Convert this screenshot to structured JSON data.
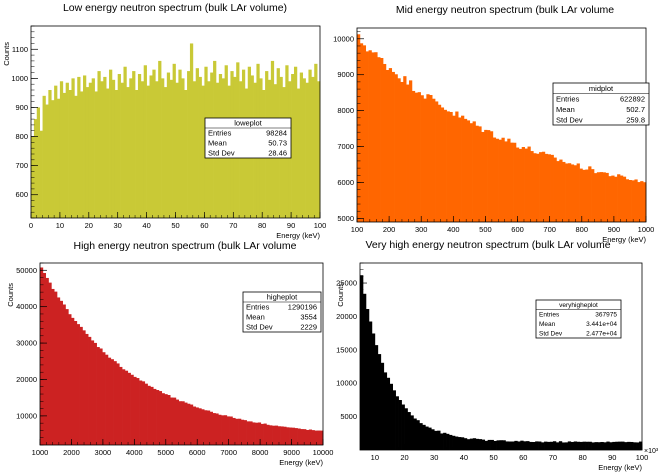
{
  "chart_data": [
    {
      "type": "bar",
      "title": "Low energy neutron spectrum (bulk LAr volume)",
      "xlabel": "Energy (keV)",
      "ylabel": "Counts",
      "xlim": [
        0,
        100
      ],
      "ylim": [
        520,
        1180
      ],
      "xticks": [
        0,
        10,
        20,
        30,
        40,
        50,
        60,
        70,
        80,
        90,
        100
      ],
      "yticks": [
        600,
        700,
        800,
        900,
        1000,
        1100
      ],
      "bin_count": 100,
      "values": [
        800,
        860,
        900,
        820,
        940,
        910,
        960,
        925,
        975,
        930,
        990,
        950,
        985,
        960,
        1000,
        940,
        1005,
        955,
        1010,
        970,
        985,
        1000,
        955,
        1025,
        990,
        1005,
        965,
        1030,
        995,
        960,
        1015,
        985,
        1040,
        970,
        1000,
        1025,
        960,
        1015,
        990,
        1045,
        975,
        1010,
        1030,
        990,
        1060,
        1000,
        970,
        1020,
        995,
        1050,
        985,
        1030,
        1000,
        960,
        1025,
        1120,
        990,
        1035,
        1005,
        975,
        1040,
        990,
        1020,
        1060,
        985,
        1015,
        1000,
        1045,
        975,
        1025,
        1005,
        1055,
        990,
        1030,
        965,
        1040,
        1010,
        985,
        1050,
        1000,
        960,
        1025,
        995,
        1060,
        980,
        1035,
        1005,
        970,
        1045,
        990,
        1015,
        1040,
        965,
        1020,
        1000,
        985,
        1030,
        1005,
        1050,
        990
      ],
      "color": "#c9c936",
      "stats": {
        "name": "loweplot",
        "rows": [
          {
            "label": "Entries",
            "value": "98284"
          },
          {
            "label": "Mean",
            "value": "50.73"
          },
          {
            "label": "Std Dev",
            "value": "28.46"
          }
        ]
      }
    },
    {
      "type": "bar",
      "title": "Mid energy neutron spectrum (bulk LAr volume",
      "xlabel": "Energy (keV)",
      "ylabel": "",
      "xlim": [
        100,
        1000
      ],
      "ylim": [
        4900,
        10300
      ],
      "xticks": [
        100,
        200,
        300,
        400,
        500,
        600,
        700,
        800,
        900,
        1000
      ],
      "yticks": [
        5000,
        6000,
        7000,
        8000,
        9000,
        10000
      ],
      "decay": {
        "start": 10000,
        "end": 5000,
        "shape": 1.6,
        "noise": 150
      },
      "bin_count": 100,
      "color": "#ff6600",
      "stats": {
        "name": "midplot",
        "rows": [
          {
            "label": "Entries",
            "value": "622892"
          },
          {
            "label": "Mean",
            "value": "502.7"
          },
          {
            "label": "Std Dev",
            "value": "259.8"
          }
        ]
      }
    },
    {
      "type": "bar",
      "title": "High energy neutron spectrum (bulk LAr volume",
      "xlabel": "Energy (keV)",
      "ylabel": "Counts",
      "xlim": [
        1000,
        10000
      ],
      "ylim": [
        2000,
        52000
      ],
      "xticks": [
        1000,
        2000,
        3000,
        4000,
        5000,
        6000,
        7000,
        8000,
        9000,
        10000
      ],
      "yticks": [
        10000,
        20000,
        30000,
        40000,
        50000
      ],
      "decay": {
        "start": 50500,
        "end": 3500,
        "shape": 3.0,
        "noise": 300
      },
      "bin_count": 100,
      "color": "#cc2222",
      "stats": {
        "name": "higheplot",
        "rows": [
          {
            "label": "Entries",
            "value": "1290196"
          },
          {
            "label": "Mean",
            "value": "3554"
          },
          {
            "label": "Std Dev",
            "value": "2229"
          }
        ]
      }
    },
    {
      "type": "bar",
      "title": "Very high energy neutron spectrum (bulk LAr volume",
      "xlabel": "Energy (keV)",
      "ylabel": "Counts",
      "xlim": [
        5,
        100
      ],
      "ylim": [
        0,
        28000
      ],
      "xticks": [
        10,
        20,
        30,
        40,
        50,
        60,
        70,
        80,
        90,
        100
      ],
      "yticks": [
        5000,
        10000,
        15000,
        20000,
        25000
      ],
      "x_multiplier": "×10³",
      "decay": {
        "start": 26000,
        "end": 1200,
        "shape": 10.0,
        "noise": 180
      },
      "bin_count": 95,
      "color": "#000000",
      "stats": {
        "name": "veryhigheplot",
        "rows": [
          {
            "label": "Entries",
            "value": "367975"
          },
          {
            "label": "Mean",
            "value": "3.441e+04"
          },
          {
            "label": "Std Dev",
            "value": "2.477e+04"
          }
        ]
      }
    }
  ]
}
